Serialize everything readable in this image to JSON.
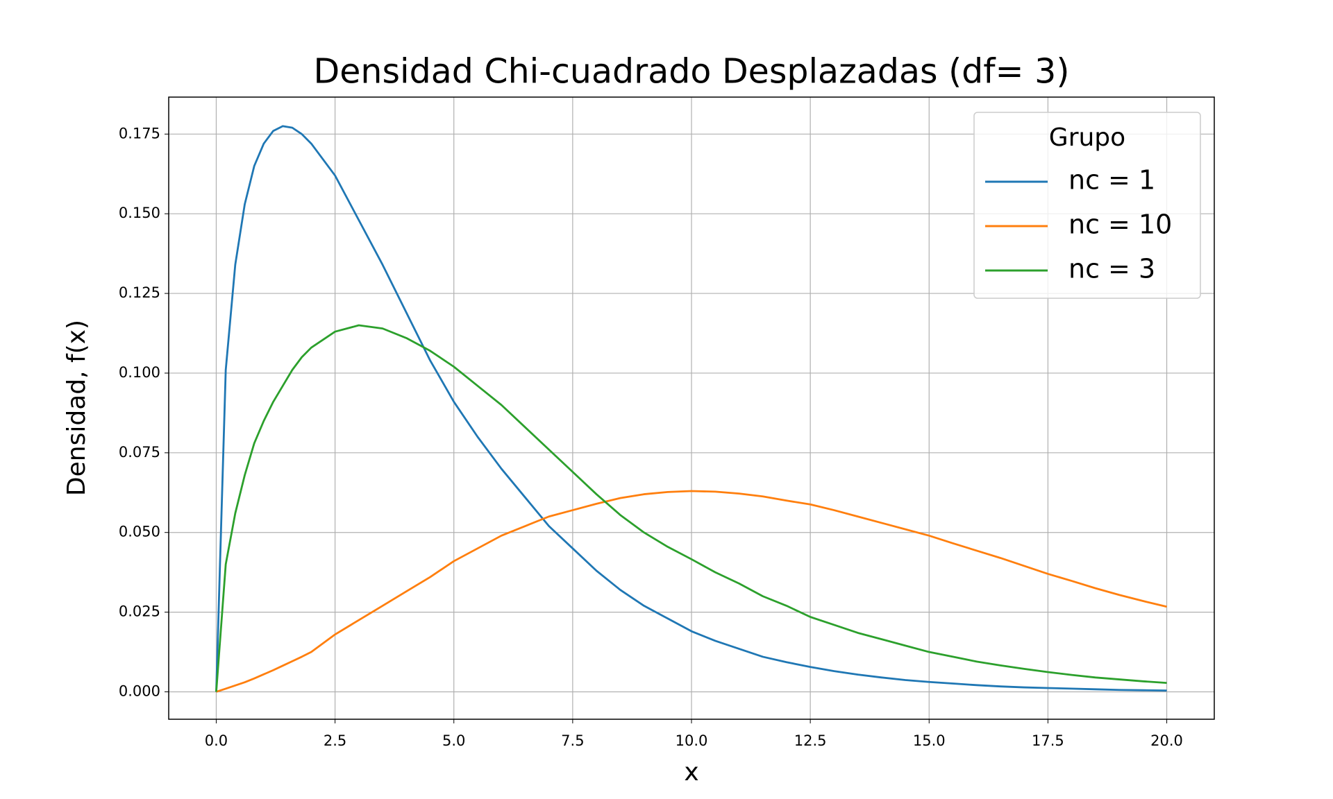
{
  "chart_data": {
    "type": "line",
    "title": "Densidad Chi-cuadrado Desplazadas (df= 3)",
    "xlabel": "x",
    "ylabel": "Densidad, f(x)",
    "legend_title": "Grupo",
    "legend": "upper right",
    "grid": true,
    "x": [
      0,
      0.2,
      0.4,
      0.6,
      0.8,
      1,
      1.2,
      1.4,
      1.6,
      1.8,
      2,
      2.5,
      3,
      3.5,
      4,
      4.5,
      5,
      5.5,
      6,
      6.5,
      7,
      7.5,
      8,
      8.5,
      9,
      9.5,
      10,
      10.5,
      11,
      11.5,
      12,
      12.5,
      13,
      13.5,
      14,
      14.5,
      15,
      15.5,
      16,
      16.5,
      17,
      17.5,
      18,
      18.5,
      19,
      19.5,
      20
    ],
    "series": [
      {
        "name": "nc = 1",
        "color": "#1f77b4",
        "values": [
          0,
          0.101,
          0.134,
          0.153,
          0.165,
          0.172,
          0.176,
          0.1775,
          0.177,
          0.175,
          0.172,
          0.162,
          0.148,
          0.134,
          0.119,
          0.104,
          0.091,
          0.08,
          0.07,
          0.061,
          0.052,
          0.045,
          0.038,
          0.032,
          0.027,
          0.023,
          0.019,
          0.016,
          0.0135,
          0.011,
          0.0093,
          0.0078,
          0.0065,
          0.0054,
          0.0045,
          0.0037,
          0.0031,
          0.0026,
          0.0021,
          0.0017,
          0.0014,
          0.0012,
          0.001,
          0.0008,
          0.0006,
          0.0005,
          0.0004
        ]
      },
      {
        "name": "nc = 10",
        "color": "#ff7f0e",
        "values": [
          0,
          0.001,
          0.002,
          0.003,
          0.0042,
          0.0055,
          0.0068,
          0.0082,
          0.0096,
          0.011,
          0.0125,
          0.018,
          0.0225,
          0.027,
          0.0315,
          0.036,
          0.041,
          0.045,
          0.049,
          0.052,
          0.055,
          0.057,
          0.059,
          0.0608,
          0.062,
          0.0627,
          0.063,
          0.0628,
          0.0622,
          0.0613,
          0.06,
          0.0588,
          0.057,
          0.055,
          0.053,
          0.051,
          0.049,
          0.0466,
          0.0443,
          0.042,
          0.0395,
          0.037,
          0.0348,
          0.0325,
          0.0304,
          0.0285,
          0.0267
        ]
      },
      {
        "name": "nc = 3",
        "color": "#2ca02c",
        "values": [
          0,
          0.04,
          0.056,
          0.068,
          0.078,
          0.085,
          0.091,
          0.096,
          0.101,
          0.105,
          0.108,
          0.113,
          0.115,
          0.114,
          0.111,
          0.107,
          0.102,
          0.096,
          0.09,
          0.083,
          0.076,
          0.069,
          0.062,
          0.0555,
          0.05,
          0.0455,
          0.0416,
          0.0375,
          0.034,
          0.03,
          0.027,
          0.0235,
          0.021,
          0.0185,
          0.0165,
          0.0145,
          0.0125,
          0.011,
          0.0095,
          0.0083,
          0.0072,
          0.0062,
          0.0053,
          0.0045,
          0.0039,
          0.0033,
          0.0028
        ]
      }
    ],
    "xlim": [
      -1,
      21
    ],
    "xticks": [
      {
        "value": 0,
        "label": "0.0"
      },
      2.5,
      {
        "value": 5,
        "label": "5.0"
      },
      7.5,
      {
        "value": 10,
        "label": "10.0"
      },
      12.5,
      {
        "value": 15,
        "label": "15.0"
      },
      17.5,
      {
        "value": 20,
        "label": "20.0"
      }
    ],
    "ylim": [
      -0.0086,
      0.1866
    ],
    "yticks": [
      {
        "value": 0,
        "label": "0.000"
      },
      {
        "value": 0.025,
        "label": "0.025"
      },
      {
        "value": 0.05,
        "label": "0.050"
      },
      {
        "value": 0.075,
        "label": "0.075"
      },
      {
        "value": 0.1,
        "label": "0.100"
      },
      {
        "value": 0.125,
        "label": "0.125"
      },
      {
        "value": 0.15,
        "label": "0.150"
      },
      {
        "value": 0.175,
        "label": "0.175"
      }
    ]
  }
}
